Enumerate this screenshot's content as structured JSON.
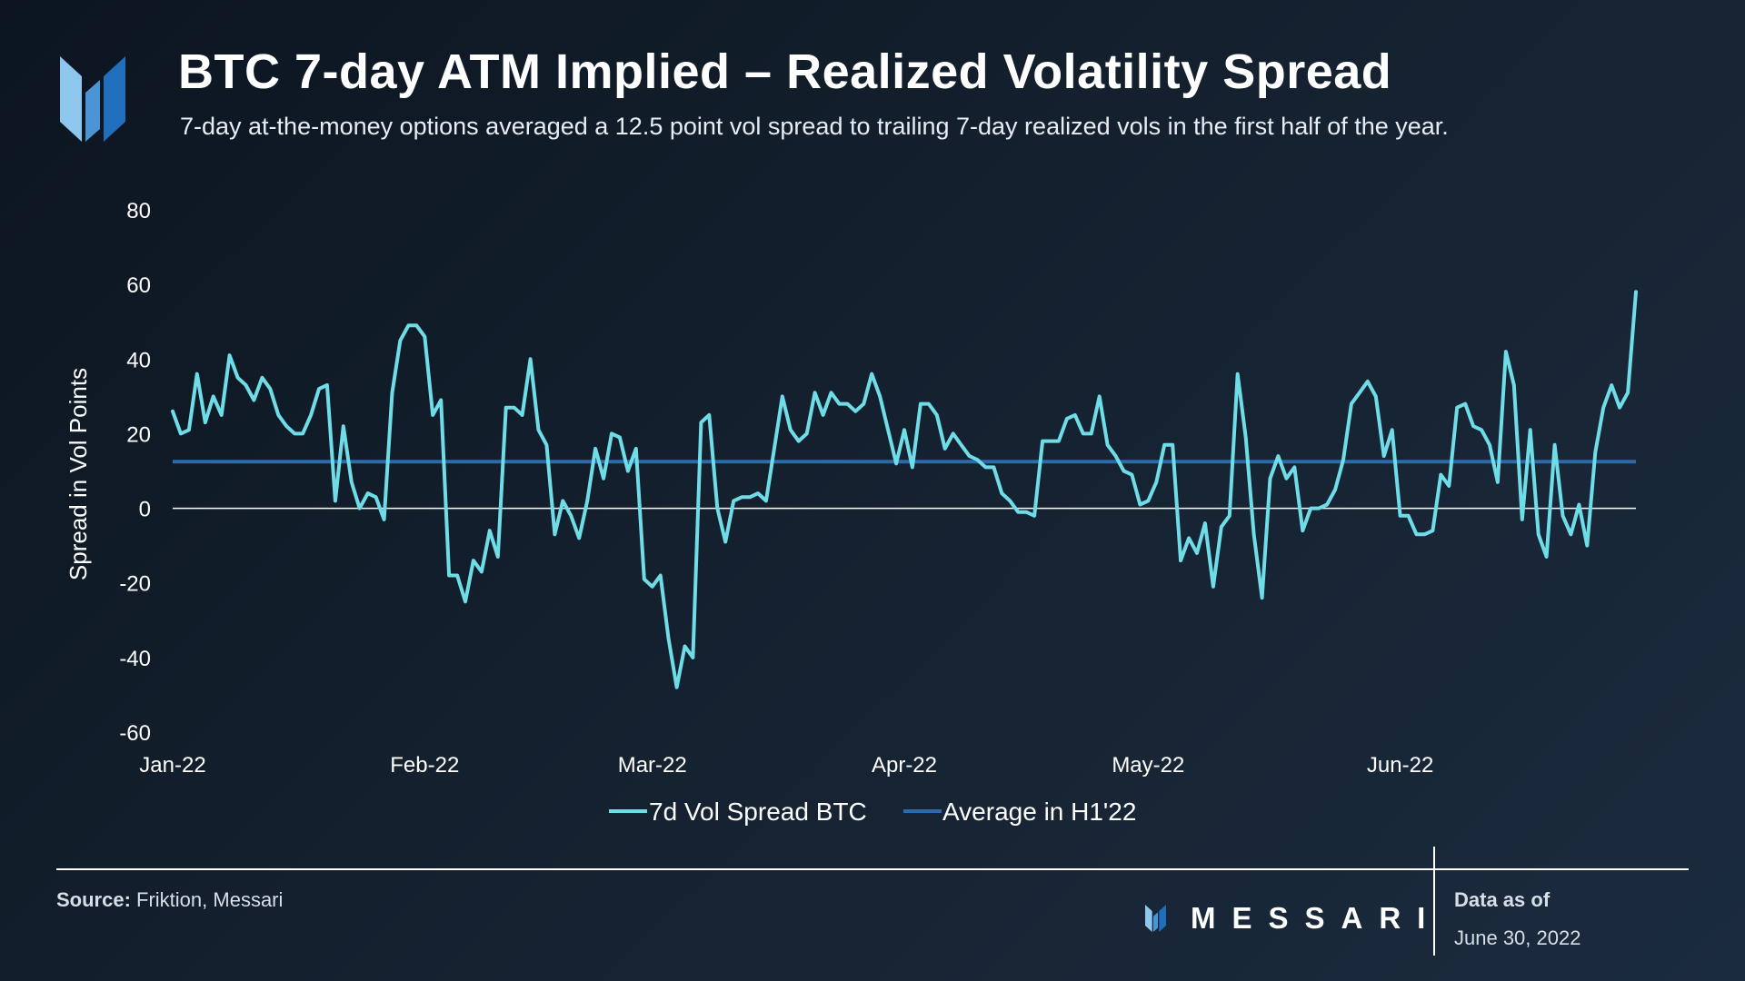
{
  "header": {
    "title": "BTC 7-day ATM Implied – Realized Volatility Spread",
    "subtitle": "7-day at-the-money options averaged a 12.5 point vol spread to trailing 7-day realized vols in the first half of the year."
  },
  "footer": {
    "source_label": "Source:",
    "source_text": " Friktion, Messari",
    "brand": "MESSARI",
    "data_as_of_label": "Data as of",
    "data_as_of_date": "June 30, 2022"
  },
  "colors": {
    "series_line": "#6fdde8",
    "average_line": "#2f6aa8",
    "zero_line": "#ffffff",
    "logo_light": "#8ec6ee",
    "logo_mid": "#4b95d4",
    "logo_dark": "#1f6fbd"
  },
  "chart_data": {
    "type": "line",
    "ylabel": "Spread in Vol Points",
    "xlabel": "",
    "ylim": [
      -60,
      80
    ],
    "yticks": [
      80,
      60,
      40,
      20,
      0,
      -20,
      -40,
      -60
    ],
    "xtick_labels": [
      {
        "label": "Jan-22",
        "day": 0
      },
      {
        "label": "Feb-22",
        "day": 31
      },
      {
        "label": "Mar-22",
        "day": 59
      },
      {
        "label": "Apr-22",
        "day": 90
      },
      {
        "label": "May-22",
        "day": 120
      },
      {
        "label": "Jun-22",
        "day": 151
      }
    ],
    "legend": [
      "7d Vol Spread BTC",
      "Average in H1'22"
    ],
    "legend_position": "bottom-center",
    "average": 12.5,
    "series": [
      {
        "name": "7d Vol Spread BTC",
        "x_start_day": 0,
        "values": [
          26,
          20,
          21,
          36,
          23,
          30,
          25,
          41,
          35,
          33,
          29,
          35,
          32,
          25,
          22,
          20,
          20,
          25,
          32,
          33,
          2,
          22,
          7,
          0,
          4,
          3,
          -3,
          31,
          45,
          49,
          49,
          46,
          25,
          29,
          -18,
          -18,
          -25,
          -14,
          -17,
          -6,
          -13,
          27,
          27,
          25,
          40,
          21,
          17,
          -7,
          2,
          -2,
          -8,
          2,
          16,
          8,
          20,
          19,
          10,
          16,
          -19,
          -21,
          -18,
          -35,
          -48,
          -37,
          -40,
          23,
          25,
          0,
          -9,
          2,
          3,
          3,
          4,
          2,
          16,
          30,
          21,
          18,
          20,
          31,
          25,
          31,
          28,
          28,
          26,
          28,
          36,
          30,
          21,
          12,
          21,
          11,
          28,
          28,
          25,
          16,
          20,
          17,
          14,
          13,
          11,
          11,
          4,
          2,
          -1,
          -1,
          -2,
          18,
          18,
          18,
          24,
          25,
          20,
          20,
          30,
          17,
          14,
          10,
          9,
          1,
          2,
          7,
          17,
          17,
          -14,
          -8,
          -12,
          -4,
          -21,
          -5,
          -2,
          36,
          19,
          -7,
          -24,
          8,
          14,
          8,
          11,
          -6,
          0,
          0,
          1,
          5,
          13,
          28,
          31,
          34,
          30,
          14,
          21,
          -2,
          -2,
          -7,
          -7,
          -6,
          9,
          6,
          27,
          28,
          22,
          21,
          17,
          7,
          42,
          33,
          -3,
          21,
          -7,
          -13,
          17,
          -2,
          -7,
          1,
          -10,
          15,
          27,
          33,
          27,
          31,
          58
        ]
      },
      {
        "name": "Average in H1'22",
        "constant": 12.5
      }
    ]
  }
}
